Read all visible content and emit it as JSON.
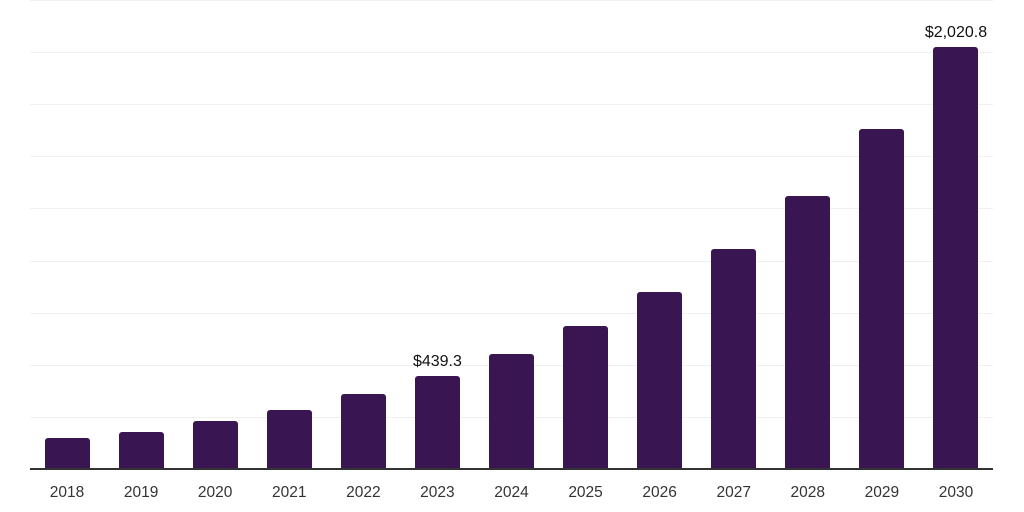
{
  "chart_data": {
    "type": "bar",
    "title": "",
    "xlabel": "",
    "ylabel": "",
    "categories": [
      "2018",
      "2019",
      "2020",
      "2021",
      "2022",
      "2023",
      "2024",
      "2025",
      "2026",
      "2027",
      "2028",
      "2029",
      "2030"
    ],
    "values": [
      144,
      173,
      225,
      280,
      355,
      439.3,
      546.3,
      679.4,
      844.9,
      1050.7,
      1306.6,
      1624.9,
      2020.8
    ],
    "data_labels": {
      "2023": "$439.3",
      "2030": "$2,020.8"
    },
    "ylim": [
      0,
      2250
    ],
    "gridline_interval": 250,
    "grid": "horizontal",
    "y_tick_labels": "none",
    "legend_position": "none",
    "colors": {
      "bar": "#391551",
      "axis_line": "#333333",
      "gridline": "#f0f0f0",
      "tick_label": "#333333",
      "data_label": "#111111",
      "background": "#ffffff"
    }
  }
}
